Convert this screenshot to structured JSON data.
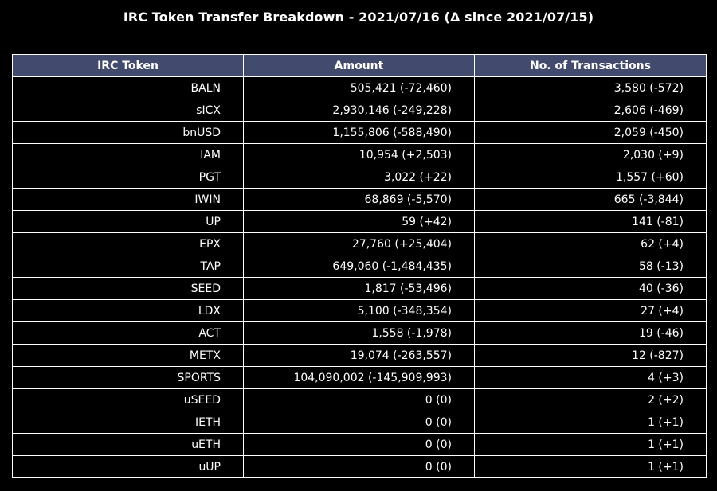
{
  "chart_data": {
    "type": "table",
    "title": "IRC Token Transfer Breakdown - 2021/07/16 (Δ since 2021/07/15)",
    "header_color": "#424a6e",
    "columns": [
      "IRC Token",
      "Amount",
      "No. of Transactions"
    ],
    "rows": [
      [
        "BALN",
        "505,421 (-72,460)",
        "3,580 (-572)"
      ],
      [
        "sICX",
        "2,930,146 (-249,228)",
        "2,606 (-469)"
      ],
      [
        "bnUSD",
        "1,155,806 (-588,490)",
        "2,059 (-450)"
      ],
      [
        "IAM",
        "10,954 (+2,503)",
        "2,030 (+9)"
      ],
      [
        "PGT",
        "3,022 (+22)",
        "1,557 (+60)"
      ],
      [
        "IWIN",
        "68,869 (-5,570)",
        "665 (-3,844)"
      ],
      [
        "UP",
        "59 (+42)",
        "141 (-81)"
      ],
      [
        "EPX",
        "27,760 (+25,404)",
        "62 (+4)"
      ],
      [
        "TAP",
        "649,060 (-1,484,435)",
        "58 (-13)"
      ],
      [
        "SEED",
        "1,817 (-53,496)",
        "40 (-36)"
      ],
      [
        "LDX",
        "5,100 (-348,354)",
        "27 (+4)"
      ],
      [
        "ACT",
        "1,558 (-1,978)",
        "19 (-46)"
      ],
      [
        "METX",
        "19,074 (-263,557)",
        "12 (-827)"
      ],
      [
        "SPORTS",
        "104,090,002 (-145,909,993)",
        "4 (+3)"
      ],
      [
        "uSEED",
        "0 (0)",
        "2 (+2)"
      ],
      [
        "IETH",
        "0 (0)",
        "1 (+1)"
      ],
      [
        "uETH",
        "0 (0)",
        "1 (+1)"
      ],
      [
        "uUP",
        "0 (0)",
        "1 (+1)"
      ]
    ]
  }
}
